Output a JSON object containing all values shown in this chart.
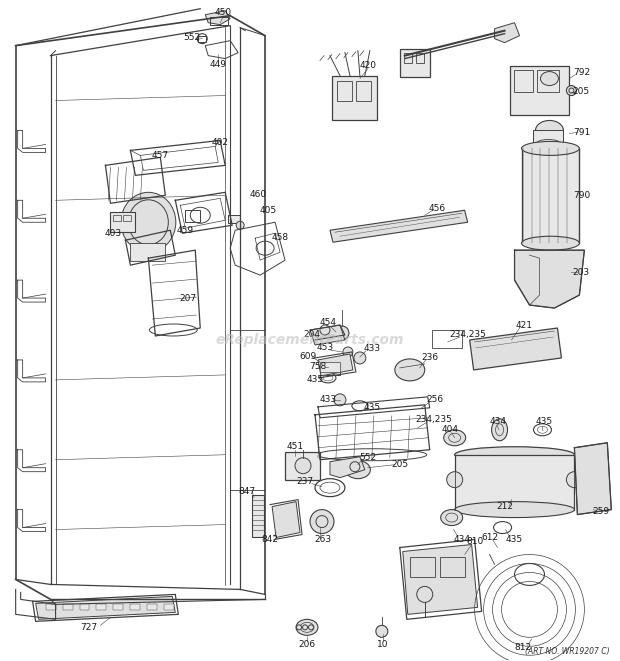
{
  "art_no": "(ART NO. WR19207 C)",
  "watermark": "eReplacementParts.com",
  "bg": "#ffffff",
  "fg": "#404040",
  "figsize": [
    6.2,
    6.61
  ],
  "dpi": 100
}
